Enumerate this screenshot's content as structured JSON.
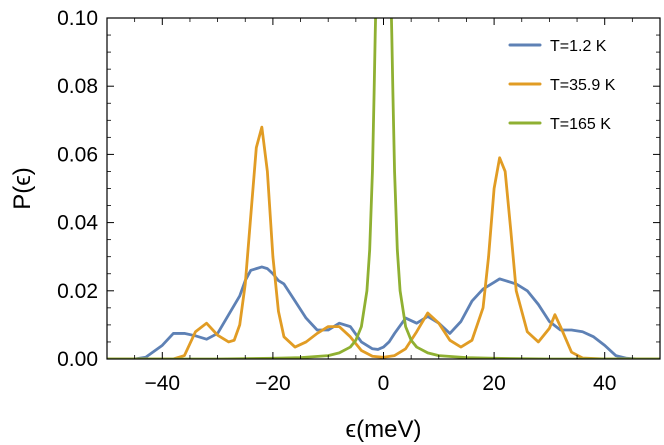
{
  "chart_data": {
    "type": "line",
    "title": "",
    "xlabel": "ϵ(meV)",
    "ylabel": "P(ϵ)",
    "xlim": [
      -50,
      50
    ],
    "ylim": [
      0,
      0.1
    ],
    "xticks": [
      -40,
      -20,
      0,
      20,
      40
    ],
    "xtick_labels": [
      "−40",
      "−20",
      "0",
      "20",
      "40"
    ],
    "yticks": [
      0,
      0.02,
      0.04,
      0.06,
      0.08,
      0.1
    ],
    "ytick_labels": [
      "0.00",
      "0.02",
      "0.04",
      "0.06",
      "0.08",
      "0.10"
    ],
    "grid": false,
    "legend_position": "top-right",
    "series": [
      {
        "name": "T=1.2 K",
        "color": "#5e81b5",
        "x": [
          -50,
          -45,
          -43,
          -40,
          -38,
          -36,
          -34,
          -32,
          -30,
          -28,
          -26,
          -25,
          -24,
          -23,
          -22,
          -21,
          -20,
          -19,
          -18,
          -16,
          -14,
          -12,
          -10,
          -8,
          -6,
          -4,
          -2,
          -1,
          0,
          1,
          2,
          4,
          6,
          8,
          10,
          12,
          14,
          16,
          18,
          20,
          21,
          22,
          24,
          26,
          28,
          30,
          32,
          34,
          36,
          38,
          40,
          42,
          44,
          46,
          50
        ],
        "y": [
          0,
          0,
          0.0005,
          0.004,
          0.0075,
          0.0075,
          0.0068,
          0.0058,
          0.0075,
          0.013,
          0.0185,
          0.023,
          0.026,
          0.0265,
          0.027,
          0.0265,
          0.025,
          0.023,
          0.022,
          0.017,
          0.012,
          0.0085,
          0.0085,
          0.0105,
          0.0095,
          0.005,
          0.003,
          0.0028,
          0.0035,
          0.005,
          0.0075,
          0.012,
          0.0105,
          0.0125,
          0.0105,
          0.0075,
          0.011,
          0.017,
          0.0205,
          0.0225,
          0.0235,
          0.023,
          0.022,
          0.02,
          0.016,
          0.011,
          0.0085,
          0.0085,
          0.008,
          0.0065,
          0.004,
          0.001,
          0.0002,
          0,
          0
        ]
      },
      {
        "name": "T=35.9 K",
        "color": "#e19c24",
        "x": [
          -50,
          -40,
          -38,
          -36,
          -34,
          -32,
          -30,
          -28,
          -27,
          -26,
          -25,
          -24,
          -23,
          -22,
          -21,
          -20,
          -19,
          -18,
          -16,
          -14,
          -12,
          -10,
          -8,
          -6,
          -4,
          -2,
          0,
          2,
          4,
          6,
          8,
          10,
          12,
          14,
          16,
          18,
          19,
          20,
          21,
          22,
          23,
          24,
          26,
          28,
          30,
          31,
          32,
          34,
          36,
          40,
          50
        ],
        "y": [
          0,
          0,
          0,
          0.001,
          0.008,
          0.0105,
          0.007,
          0.005,
          0.0055,
          0.01,
          0.022,
          0.042,
          0.062,
          0.068,
          0.055,
          0.03,
          0.014,
          0.0065,
          0.0035,
          0.005,
          0.0075,
          0.0095,
          0.0095,
          0.0065,
          0.0025,
          0.0008,
          0.0005,
          0.001,
          0.003,
          0.008,
          0.0135,
          0.0105,
          0.0055,
          0.0035,
          0.0055,
          0.015,
          0.03,
          0.05,
          0.059,
          0.055,
          0.038,
          0.02,
          0.008,
          0.005,
          0.009,
          0.013,
          0.0095,
          0.002,
          0.0003,
          0,
          0
        ]
      },
      {
        "name": "T=165 K",
        "color": "#8fb032",
        "x": [
          -50,
          -30,
          -20,
          -15,
          -10,
          -8,
          -6,
          -5,
          -4,
          -3,
          -2.5,
          -2,
          -1.7,
          -1.5,
          -1.3,
          1.3,
          1.5,
          1.7,
          2,
          2.5,
          3,
          4,
          5,
          6,
          8,
          10,
          15,
          20,
          30,
          50
        ],
        "y": [
          0,
          0,
          0.0002,
          0.0004,
          0.001,
          0.0018,
          0.0035,
          0.0055,
          0.0095,
          0.02,
          0.032,
          0.055,
          0.078,
          0.095,
          0.11,
          0.11,
          0.095,
          0.078,
          0.055,
          0.032,
          0.02,
          0.0095,
          0.0055,
          0.0035,
          0.0018,
          0.001,
          0.0004,
          0.0002,
          0,
          0
        ]
      }
    ]
  }
}
